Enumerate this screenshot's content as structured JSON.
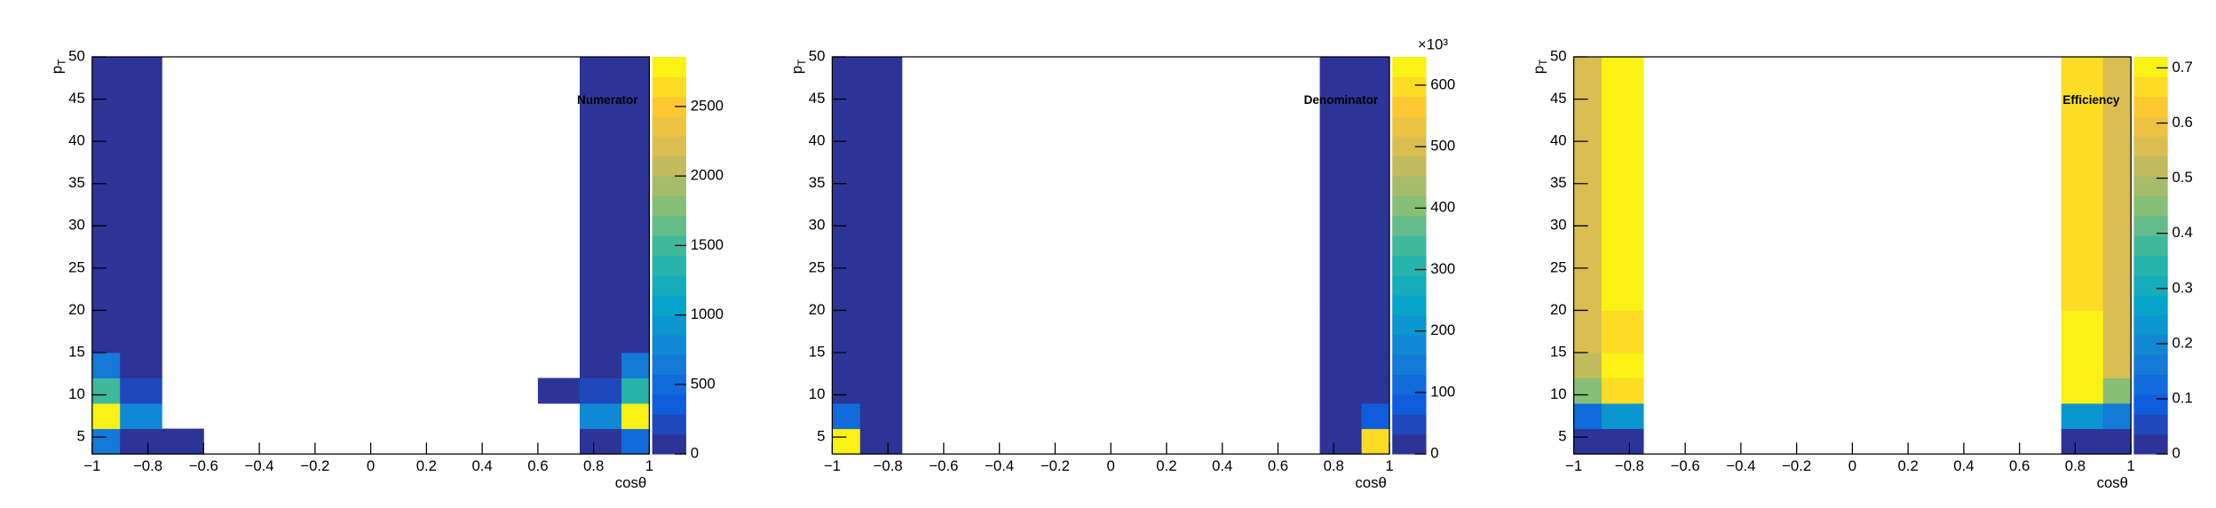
{
  "chart_data": [
    {
      "type": "heatmap",
      "annotation": "Numerator",
      "x_label": "cosθ",
      "y_label": "p",
      "y_label_subscript": "T",
      "xbins": [
        -1,
        -0.9,
        -0.75,
        -0.6,
        -0.45,
        -0.3,
        -0.15,
        0,
        0.15,
        0.3,
        0.45,
        0.6,
        0.75,
        0.9,
        1
      ],
      "ybins": [
        3,
        6,
        9,
        12,
        15,
        20,
        50
      ],
      "xlim": [
        -1,
        1
      ],
      "ylim": [
        3,
        50
      ],
      "xticks": [
        {
          "value": -1,
          "label": "−1"
        },
        {
          "value": -0.8,
          "label": "−0.8"
        },
        {
          "value": -0.6,
          "label": "−0.6"
        },
        {
          "value": -0.4,
          "label": "−0.4"
        },
        {
          "value": -0.2,
          "label": "−0.2"
        },
        0,
        0.2,
        0.4,
        0.6,
        0.8,
        1
      ],
      "yticks": [
        5,
        10,
        15,
        20,
        25,
        30,
        35,
        40,
        45,
        50
      ],
      "zlim": [
        0,
        2857
      ],
      "zticks": [
        0,
        500,
        1000,
        1500,
        2000,
        2500
      ],
      "palette": [
        "#352a87",
        "#0f5cdd",
        "#1481d6",
        "#06a4ca",
        "#2eb7a4",
        "#87bf77",
        "#d1bb59",
        "#fec832",
        "#f9fb0e"
      ],
      "z": [
        [
          600,
          100,
          30,
          null,
          null,
          null,
          null,
          null,
          null,
          null,
          null,
          null,
          100,
          500
        ],
        [
          2800,
          800,
          null,
          null,
          null,
          null,
          null,
          null,
          null,
          null,
          null,
          null,
          800,
          2800
        ],
        [
          1500,
          150,
          null,
          null,
          null,
          null,
          null,
          null,
          null,
          null,
          null,
          30,
          150,
          1300
        ],
        [
          600,
          50,
          null,
          null,
          null,
          null,
          null,
          null,
          null,
          null,
          null,
          null,
          50,
          600
        ],
        [
          100,
          50,
          null,
          null,
          null,
          null,
          null,
          null,
          null,
          null,
          null,
          null,
          50,
          100
        ],
        [
          100,
          50,
          null,
          null,
          null,
          null,
          null,
          null,
          null,
          null,
          null,
          null,
          50,
          100
        ]
      ]
    },
    {
      "type": "heatmap",
      "annotation": "Denominator",
      "x_label": "cosθ",
      "y_label": "p",
      "y_label_subscript": "T",
      "xbins": [
        -1,
        -0.9,
        -0.75,
        -0.6,
        -0.45,
        -0.3,
        -0.15,
        0,
        0.15,
        0.3,
        0.45,
        0.6,
        0.75,
        0.9,
        1
      ],
      "ybins": [
        3,
        6,
        9,
        12,
        15,
        20,
        50
      ],
      "xlim": [
        -1,
        1
      ],
      "ylim": [
        3,
        50
      ],
      "xticks": [
        {
          "value": -1,
          "label": "−1"
        },
        {
          "value": -0.8,
          "label": "−0.8"
        },
        {
          "value": -0.6,
          "label": "−0.6"
        },
        {
          "value": -0.4,
          "label": "−0.4"
        },
        {
          "value": -0.2,
          "label": "−0.2"
        },
        0,
        0.2,
        0.4,
        0.6,
        0.8,
        1
      ],
      "yticks": [
        5,
        10,
        15,
        20,
        25,
        30,
        35,
        40,
        45,
        50
      ],
      "zlim": [
        0,
        646000
      ],
      "z_multiplier": "×10³",
      "zticks": [
        {
          "value": 0,
          "label": "0"
        },
        {
          "value": 100000,
          "label": "100"
        },
        {
          "value": 200000,
          "label": "200"
        },
        {
          "value": 300000,
          "label": "300"
        },
        {
          "value": 400000,
          "label": "400"
        },
        {
          "value": 500000,
          "label": "500"
        },
        {
          "value": 600000,
          "label": "600"
        }
      ],
      "palette": [
        "#352a87",
        "#0f5cdd",
        "#1481d6",
        "#06a4ca",
        "#2eb7a4",
        "#87bf77",
        "#d1bb59",
        "#fec832",
        "#f9fb0e"
      ],
      "z": [
        [
          640000,
          5000,
          null,
          null,
          null,
          null,
          null,
          null,
          null,
          null,
          null,
          null,
          5000,
          600000
        ],
        [
          100000,
          5000,
          null,
          null,
          null,
          null,
          null,
          null,
          null,
          null,
          null,
          null,
          5000,
          80000
        ],
        [
          5000,
          5000,
          null,
          null,
          null,
          null,
          null,
          null,
          null,
          null,
          null,
          null,
          5000,
          5000
        ],
        [
          5000,
          5000,
          null,
          null,
          null,
          null,
          null,
          null,
          null,
          null,
          null,
          null,
          5000,
          5000
        ],
        [
          5000,
          5000,
          null,
          null,
          null,
          null,
          null,
          null,
          null,
          null,
          null,
          null,
          5000,
          5000
        ],
        [
          5000,
          5000,
          null,
          null,
          null,
          null,
          null,
          null,
          null,
          null,
          null,
          null,
          5000,
          5000
        ]
      ]
    },
    {
      "type": "heatmap",
      "annotation": "Efficiency",
      "x_label": "cosθ",
      "y_label": "p",
      "y_label_subscript": "T",
      "xbins": [
        -1,
        -0.9,
        -0.75,
        -0.6,
        -0.45,
        -0.3,
        -0.15,
        0,
        0.15,
        0.3,
        0.45,
        0.6,
        0.75,
        0.9,
        1
      ],
      "ybins": [
        3,
        6,
        9,
        12,
        15,
        20,
        50
      ],
      "xlim": [
        -1,
        1
      ],
      "ylim": [
        3,
        50
      ],
      "xticks": [
        {
          "value": -1,
          "label": "−1"
        },
        {
          "value": -0.8,
          "label": "−0.8"
        },
        {
          "value": -0.6,
          "label": "−0.6"
        },
        {
          "value": -0.4,
          "label": "−0.4"
        },
        {
          "value": -0.2,
          "label": "−0.2"
        },
        0,
        0.2,
        0.4,
        0.6,
        0.8,
        1
      ],
      "yticks": [
        5,
        10,
        15,
        20,
        25,
        30,
        35,
        40,
        45,
        50
      ],
      "zlim": [
        0,
        0.72
      ],
      "zticks": [
        0,
        0.1,
        0.2,
        0.3,
        0.4,
        0.5,
        0.6,
        0.7
      ],
      "palette": [
        "#352a87",
        "#0f5cdd",
        "#1481d6",
        "#06a4ca",
        "#2eb7a4",
        "#87bf77",
        "#d1bb59",
        "#fec832",
        "#f9fb0e"
      ],
      "z": [
        [
          0.02,
          0.02,
          null,
          null,
          null,
          null,
          null,
          null,
          null,
          null,
          null,
          null,
          0.02,
          0.03
        ],
        [
          0.12,
          0.25,
          null,
          null,
          null,
          null,
          null,
          null,
          null,
          null,
          null,
          null,
          0.25,
          0.15
        ],
        [
          0.45,
          0.66,
          null,
          null,
          null,
          null,
          null,
          null,
          null,
          null,
          null,
          null,
          0.7,
          0.45
        ],
        [
          0.52,
          0.72,
          null,
          null,
          null,
          null,
          null,
          null,
          null,
          null,
          null,
          null,
          0.72,
          0.55
        ],
        [
          0.55,
          0.65,
          null,
          null,
          null,
          null,
          null,
          null,
          null,
          null,
          null,
          null,
          0.72,
          0.57
        ],
        [
          0.55,
          0.72,
          null,
          null,
          null,
          null,
          null,
          null,
          null,
          null,
          null,
          null,
          0.66,
          0.57
        ]
      ]
    }
  ]
}
